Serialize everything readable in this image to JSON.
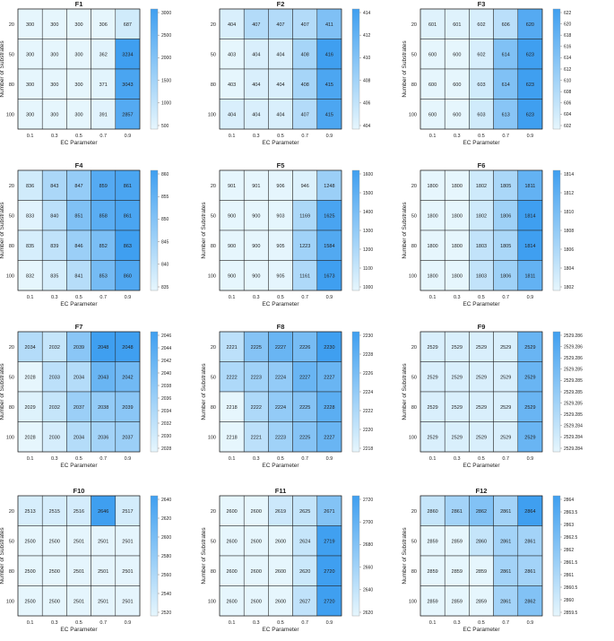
{
  "colors": {
    "low": "#e6f6fd",
    "high": "#3f9ff0",
    "grid": "#222222"
  },
  "shared": {
    "xlabel": "EC Parameter",
    "ylabel": "Number of Substrates",
    "x_ticks": [
      "0.1",
      "0.3",
      "0.5",
      "0.7",
      "0.9"
    ],
    "y_ticks": [
      "20",
      "50",
      "80",
      "100"
    ]
  },
  "chart_data": [
    {
      "type": "heatmap",
      "title": "F1",
      "xlabel": "EC Parameter",
      "ylabel": "Number of Substrates",
      "x": [
        "0.1",
        "0.3",
        "0.5",
        "0.7",
        "0.9"
      ],
      "y": [
        "20",
        "50",
        "80",
        "100"
      ],
      "values": [
        [
          300,
          300,
          300,
          306,
          687
        ],
        [
          300,
          300,
          300,
          362,
          3234
        ],
        [
          300,
          300,
          300,
          371,
          3043
        ],
        [
          300,
          300,
          300,
          391,
          2857
        ]
      ],
      "colorbar_ticks": [
        "3000",
        "2500",
        "2000",
        "1500",
        "1000",
        "500"
      ],
      "color_range": [
        300,
        3234
      ]
    },
    {
      "type": "heatmap",
      "title": "F2",
      "xlabel": "EC Parameter",
      "ylabel": "",
      "x": [
        "0.1",
        "0.3",
        "0.5",
        "0.7",
        "0.9"
      ],
      "y": [
        "20",
        "50",
        "80",
        "100"
      ],
      "values": [
        [
          404,
          407,
          407,
          407,
          411
        ],
        [
          403,
          404,
          404,
          408,
          416
        ],
        [
          403,
          404,
          404,
          408,
          415
        ],
        [
          404,
          404,
          404,
          407,
          415
        ]
      ],
      "colorbar_ticks": [
        "414",
        "412",
        "410",
        "408",
        "406",
        "404"
      ],
      "color_range": [
        403,
        416
      ]
    },
    {
      "type": "heatmap",
      "title": "F3",
      "xlabel": "EC Parameter",
      "ylabel": "Number of Substrates",
      "x": [
        "0.1",
        "0.3",
        "0.5",
        "0.7",
        "0.9"
      ],
      "y": [
        "20",
        "50",
        "80",
        "100"
      ],
      "values": [
        [
          601,
          601,
          602,
          606,
          620
        ],
        [
          600,
          600,
          602,
          614,
          623
        ],
        [
          600,
          600,
          603,
          614,
          623
        ],
        [
          600,
          600,
          603,
          613,
          623
        ]
      ],
      "colorbar_ticks": [
        "622",
        "620",
        "618",
        "616",
        "614",
        "612",
        "610",
        "608",
        "606",
        "604",
        "602"
      ],
      "color_range": [
        600,
        623
      ]
    },
    {
      "type": "heatmap",
      "title": "F4",
      "xlabel": "EC Parameter",
      "ylabel": "Number of Substrates",
      "x": [
        "0.1",
        "0.3",
        "0.5",
        "0.7",
        "0.9"
      ],
      "y": [
        "20",
        "50",
        "80",
        "100"
      ],
      "values": [
        [
          836,
          843,
          847,
          859,
          861
        ],
        [
          833,
          840,
          851,
          858,
          861
        ],
        [
          835,
          839,
          846,
          852,
          863
        ],
        [
          832,
          835,
          841,
          853,
          860
        ]
      ],
      "colorbar_ticks": [
        "860",
        "855",
        "850",
        "845",
        "840",
        "835"
      ],
      "color_range": [
        832,
        863
      ]
    },
    {
      "type": "heatmap",
      "title": "F5",
      "xlabel": "EC Parameter",
      "ylabel": "Number of Substrates",
      "x": [
        "0.1",
        "0.3",
        "0.5",
        "0.7",
        "0.9"
      ],
      "y": [
        "20",
        "50",
        "80",
        "100"
      ],
      "values": [
        [
          901,
          901,
          906,
          946,
          1248
        ],
        [
          900,
          900,
          903,
          1169,
          1625
        ],
        [
          900,
          900,
          905,
          1223,
          1584
        ],
        [
          900,
          900,
          905,
          1161,
          1673
        ]
      ],
      "colorbar_ticks": [
        "1600",
        "1500",
        "1400",
        "1300",
        "1200",
        "1100",
        "1000"
      ],
      "color_range": [
        900,
        1673
      ]
    },
    {
      "type": "heatmap",
      "title": "F6",
      "xlabel": "EC Parameter",
      "ylabel": "Number of Substrates",
      "x": [
        "0.1",
        "0.3",
        "0.5",
        "0.7",
        "0.9"
      ],
      "y": [
        "20",
        "50",
        "80",
        "100"
      ],
      "values": [
        [
          1800,
          1800,
          1802,
          1805,
          1811
        ],
        [
          1800,
          1800,
          1802,
          1806,
          1814
        ],
        [
          1800,
          1800,
          1803,
          1805,
          1814
        ],
        [
          1800,
          1800,
          1803,
          1806,
          1811
        ]
      ],
      "colorbar_ticks": [
        "1814",
        "1812",
        "1810",
        "1808",
        "1806",
        "1804",
        "1802"
      ],
      "color_range": [
        1800,
        1814
      ]
    },
    {
      "type": "heatmap",
      "title": "F7",
      "xlabel": "EC Parameter",
      "ylabel": "Number of Substrates",
      "x": [
        "0.1",
        "0.3",
        "0.5",
        "0.7",
        "0.9"
      ],
      "y": [
        "20",
        "50",
        "80",
        "100"
      ],
      "values": [
        [
          2034,
          2032,
          2039,
          2048,
          2048
        ],
        [
          2028,
          2033,
          2034,
          2043,
          2042
        ],
        [
          2029,
          2032,
          2037,
          2038,
          2039
        ],
        [
          2028,
          2030,
          2034,
          2036,
          2037
        ]
      ],
      "colorbar_ticks": [
        "2046",
        "2044",
        "2042",
        "2040",
        "2038",
        "2036",
        "2034",
        "2032",
        "2030",
        "2028"
      ],
      "color_range": [
        2028,
        2048
      ]
    },
    {
      "type": "heatmap",
      "title": "F8",
      "xlabel": "EC Parameter",
      "ylabel": "Number of Substrates",
      "x": [
        "0.1",
        "0.3",
        "0.5",
        "0.7",
        "0.9"
      ],
      "y": [
        "20",
        "50",
        "80",
        "100"
      ],
      "values": [
        [
          2221,
          2225,
          2227,
          2226,
          2230
        ],
        [
          2222,
          2223,
          2224,
          2227,
          2227
        ],
        [
          2218,
          2222,
          2224,
          2225,
          2228
        ],
        [
          2218,
          2221,
          2223,
          2225,
          2227
        ]
      ],
      "colorbar_ticks": [
        "2230",
        "2228",
        "2226",
        "2224",
        "2222",
        "2220",
        "2218"
      ],
      "color_range": [
        2218,
        2230
      ]
    },
    {
      "type": "heatmap",
      "title": "F9",
      "xlabel": "EC Parameter",
      "ylabel": "Number of Substrates",
      "x": [
        "0.1",
        "0.3",
        "0.5",
        "0.7",
        "0.9"
      ],
      "y": [
        "20",
        "50",
        "80",
        "100"
      ],
      "values": [
        [
          2529,
          2529,
          2529,
          2529,
          2529
        ],
        [
          2529,
          2529,
          2529,
          2529,
          2529
        ],
        [
          2529,
          2529,
          2529,
          2529,
          2529
        ],
        [
          2529,
          2529,
          2529,
          2529,
          2529
        ]
      ],
      "highlight_column": 4,
      "colorbar_ticks": [
        "2529.286",
        "2529.286",
        "2529.286",
        "2529.285",
        "2529.285",
        "2529.285",
        "2529.285",
        "2529.285",
        "2529.284",
        "2529.284",
        "2529.284"
      ]
    },
    {
      "type": "heatmap",
      "title": "F10",
      "xlabel": "EC Parameter",
      "ylabel": "Number of Substrates",
      "x": [
        "0.1",
        "0.3",
        "0.5",
        "0.7",
        "0.9"
      ],
      "y": [
        "20",
        "50",
        "80",
        "100"
      ],
      "values": [
        [
          2513,
          2515,
          2516,
          2646,
          2517
        ],
        [
          2500,
          2500,
          2501,
          2501,
          2501
        ],
        [
          2500,
          2500,
          2501,
          2501,
          2501
        ],
        [
          2500,
          2500,
          2501,
          2501,
          2501
        ]
      ],
      "colorbar_ticks": [
        "2640",
        "2620",
        "2600",
        "2580",
        "2560",
        "2540",
        "2520"
      ],
      "color_range": [
        2500,
        2646
      ]
    },
    {
      "type": "heatmap",
      "title": "F11",
      "xlabel": "EC Parameter",
      "ylabel": "Number of Substrates",
      "x": [
        "0.1",
        "0.3",
        "0.5",
        "0.7",
        "0.9"
      ],
      "y": [
        "20",
        "50",
        "80",
        "100"
      ],
      "values": [
        [
          2600,
          2600,
          2619,
          2625,
          2671
        ],
        [
          2600,
          2600,
          2600,
          2624,
          2719
        ],
        [
          2600,
          2600,
          2600,
          2620,
          2720
        ],
        [
          2600,
          2600,
          2600,
          2627,
          2720
        ]
      ],
      "colorbar_ticks": [
        "2720",
        "2700",
        "2680",
        "2660",
        "2640",
        "2620"
      ],
      "color_range": [
        2600,
        2720
      ]
    },
    {
      "type": "heatmap",
      "title": "F12",
      "xlabel": "EC Parameter",
      "ylabel": "Number of Substrates",
      "x": [
        "0.1",
        "0.3",
        "0.5",
        "0.7",
        "0.9"
      ],
      "y": [
        "20",
        "50",
        "80",
        "100"
      ],
      "values": [
        [
          2860,
          2861,
          2862,
          2861,
          2864
        ],
        [
          2859,
          2859,
          2860,
          2861,
          2861
        ],
        [
          2859,
          2859,
          2859,
          2861,
          2861
        ],
        [
          2859,
          2859,
          2859,
          2861,
          2862
        ]
      ],
      "colorbar_ticks": [
        "2864",
        "2863.5",
        "2863",
        "2862.5",
        "2862",
        "2861.5",
        "2861",
        "2860.5",
        "2860",
        "2859.5"
      ],
      "color_range": [
        2859,
        2864
      ]
    }
  ]
}
